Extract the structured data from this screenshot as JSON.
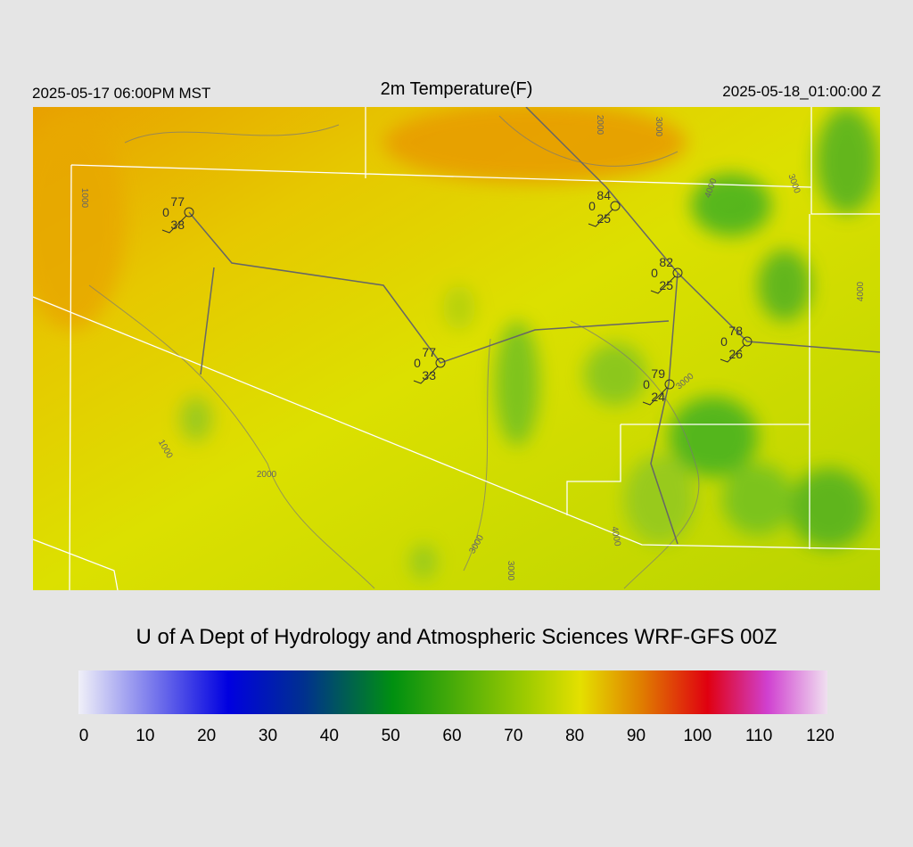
{
  "header": {
    "left": "2025-05-17 06:00PM MST",
    "title": "2m Temperature(F)",
    "right": "2025-05-18_01:00:00 Z"
  },
  "stations": [
    {
      "temperature": 77,
      "cover": 0,
      "dewpoint": 38
    },
    {
      "temperature": 84,
      "cover": 0,
      "dewpoint": 25
    },
    {
      "temperature": 82,
      "cover": 0,
      "dewpoint": 25
    },
    {
      "temperature": 77,
      "cover": 0,
      "dewpoint": 33
    },
    {
      "temperature": 78,
      "cover": 0,
      "dewpoint": 26
    },
    {
      "temperature": 79,
      "cover": 0,
      "dewpoint": 24
    }
  ],
  "contour_labels": [
    2000,
    3000,
    1000,
    4000,
    3000,
    4000,
    1000,
    2000,
    3000,
    4000,
    3000,
    3000
  ],
  "credit": "U of A Dept of Hydrology and Atmospheric Sciences WRF-GFS 00Z",
  "colorbar": {
    "ticks": [
      0,
      10,
      20,
      30,
      40,
      50,
      60,
      70,
      80,
      90,
      100,
      110,
      120
    ]
  }
}
